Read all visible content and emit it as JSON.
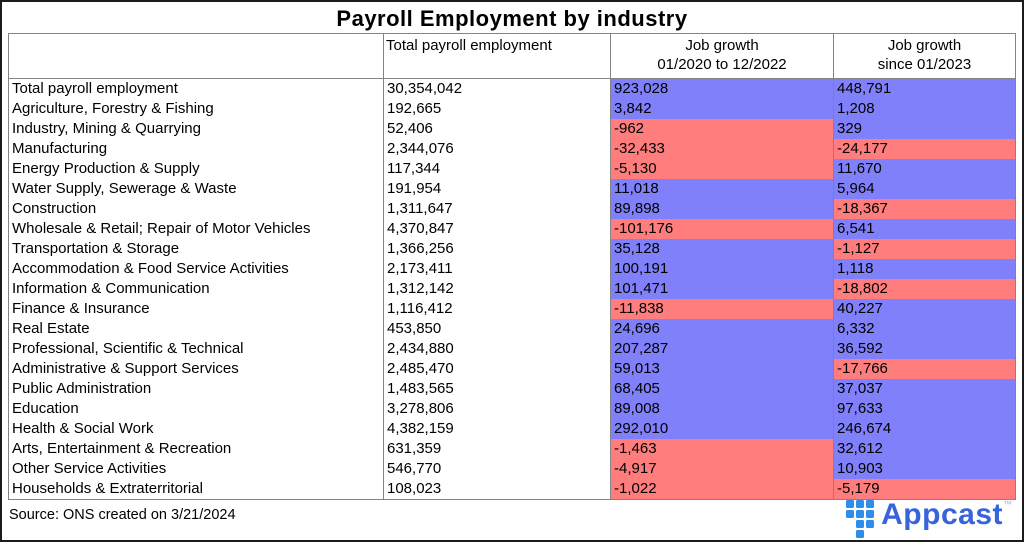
{
  "chart_data": {
    "type": "table",
    "title": "Payroll Employment by industry",
    "columns": [
      "",
      "Total payroll employment",
      "Job growth 01/2020 to 12/2022",
      "Job growth since 01/2023"
    ],
    "cell_color_rule": "negative growth values shaded red, non-negative shaded blue",
    "rows": [
      {
        "industry": "Total payroll employment",
        "total_payroll": "30,354,042",
        "growth_2020_2022": "923,028",
        "growth_since_2023": "448,791"
      },
      {
        "industry": "Agriculture, Forestry & Fishing",
        "total_payroll": "192,665",
        "growth_2020_2022": "3,842",
        "growth_since_2023": "1,208"
      },
      {
        "industry": "Industry, Mining & Quarrying",
        "total_payroll": "52,406",
        "growth_2020_2022": "-962",
        "growth_since_2023": "329"
      },
      {
        "industry": "Manufacturing",
        "total_payroll": "2,344,076",
        "growth_2020_2022": "-32,433",
        "growth_since_2023": "-24,177"
      },
      {
        "industry": "Energy Production & Supply",
        "total_payroll": "117,344",
        "growth_2020_2022": "-5,130",
        "growth_since_2023": "11,670"
      },
      {
        "industry": "Water Supply, Sewerage & Waste",
        "total_payroll": "191,954",
        "growth_2020_2022": "11,018",
        "growth_since_2023": "5,964"
      },
      {
        "industry": "Construction",
        "total_payroll": "1,311,647",
        "growth_2020_2022": "89,898",
        "growth_since_2023": "-18,367"
      },
      {
        "industry": "Wholesale & Retail; Repair of Motor Vehicles",
        "total_payroll": "4,370,847",
        "growth_2020_2022": "-101,176",
        "growth_since_2023": "6,541"
      },
      {
        "industry": "Transportation & Storage",
        "total_payroll": "1,366,256",
        "growth_2020_2022": "35,128",
        "growth_since_2023": "-1,127"
      },
      {
        "industry": "Accommodation & Food Service Activities",
        "total_payroll": "2,173,411",
        "growth_2020_2022": "100,191",
        "growth_since_2023": "1,118"
      },
      {
        "industry": "Information & Communication",
        "total_payroll": "1,312,142",
        "growth_2020_2022": "101,471",
        "growth_since_2023": "-18,802"
      },
      {
        "industry": "Finance & Insurance",
        "total_payroll": "1,116,412",
        "growth_2020_2022": "-11,838",
        "growth_since_2023": "40,227"
      },
      {
        "industry": "Real Estate",
        "total_payroll": "453,850",
        "growth_2020_2022": "24,696",
        "growth_since_2023": "6,332"
      },
      {
        "industry": "Professional, Scientific & Technical",
        "total_payroll": "2,434,880",
        "growth_2020_2022": "207,287",
        "growth_since_2023": "36,592"
      },
      {
        "industry": "Administrative & Support Services",
        "total_payroll": "2,485,470",
        "growth_2020_2022": "59,013",
        "growth_since_2023": "-17,766"
      },
      {
        "industry": "Public Administration",
        "total_payroll": "1,483,565",
        "growth_2020_2022": "68,405",
        "growth_since_2023": "37,037"
      },
      {
        "industry": "Education",
        "total_payroll": "3,278,806",
        "growth_2020_2022": "89,008",
        "growth_since_2023": "97,633"
      },
      {
        "industry": "Health & Social Work",
        "total_payroll": "4,382,159",
        "growth_2020_2022": "292,010",
        "growth_since_2023": "246,674"
      },
      {
        "industry": "Arts, Entertainment & Recreation",
        "total_payroll": "631,359",
        "growth_2020_2022": "-1,463",
        "growth_since_2023": "32,612"
      },
      {
        "industry": "Other Service Activities",
        "total_payroll": "546,770",
        "growth_2020_2022": "-4,917",
        "growth_since_2023": "10,903"
      },
      {
        "industry": "Households & Extraterritorial",
        "total_payroll": "108,023",
        "growth_2020_2022": "-1,022",
        "growth_since_2023": "-5,179"
      }
    ]
  },
  "header": {
    "industry": "",
    "total_payroll": "Total payroll employment",
    "growth1_line1": "Job growth",
    "growth1_line2": "01/2020 to 12/2022",
    "growth2_line1": "Job growth",
    "growth2_line2": "since 01/2023"
  },
  "footer": {
    "source": "Source: ONS created on 3/21/2024",
    "logo_text": "Appcast",
    "trademark": "™"
  },
  "colors": {
    "positive_cell": "#8080fa",
    "negative_cell": "#ff7d7d",
    "border": "#848484",
    "logo_icon_blue": "#2e8ceb",
    "logo_text_blue": "#3763dc"
  }
}
